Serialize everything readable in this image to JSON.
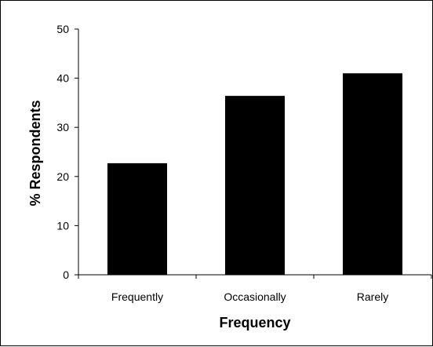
{
  "chart_data": {
    "type": "bar",
    "title": "",
    "xlabel": "Frequency",
    "ylabel": "% Respondents",
    "categories": [
      "Frequently",
      "Occasionally",
      "Rarely"
    ],
    "values": [
      22.7,
      36.4,
      41.0
    ],
    "ylim": [
      0,
      50
    ],
    "yticks": [
      0,
      10,
      20,
      30,
      40,
      50
    ],
    "ytick_labels": [
      "0",
      "10",
      "20",
      "30",
      "40",
      "50"
    ],
    "grid": false,
    "legend": "none",
    "bar_color": "#000000"
  }
}
